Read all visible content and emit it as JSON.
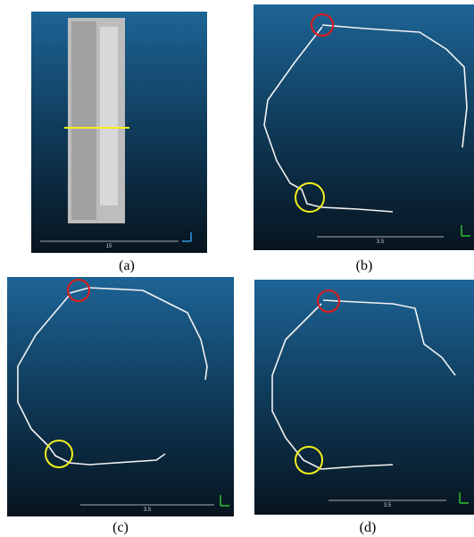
{
  "panels": [
    {
      "caption": "(a)",
      "scale_label": "15"
    },
    {
      "caption": "(b)",
      "scale_label": "3.5"
    },
    {
      "caption": "(c)",
      "scale_label": "3.5"
    },
    {
      "caption": "(d)",
      "scale_label": "3.5"
    }
  ]
}
